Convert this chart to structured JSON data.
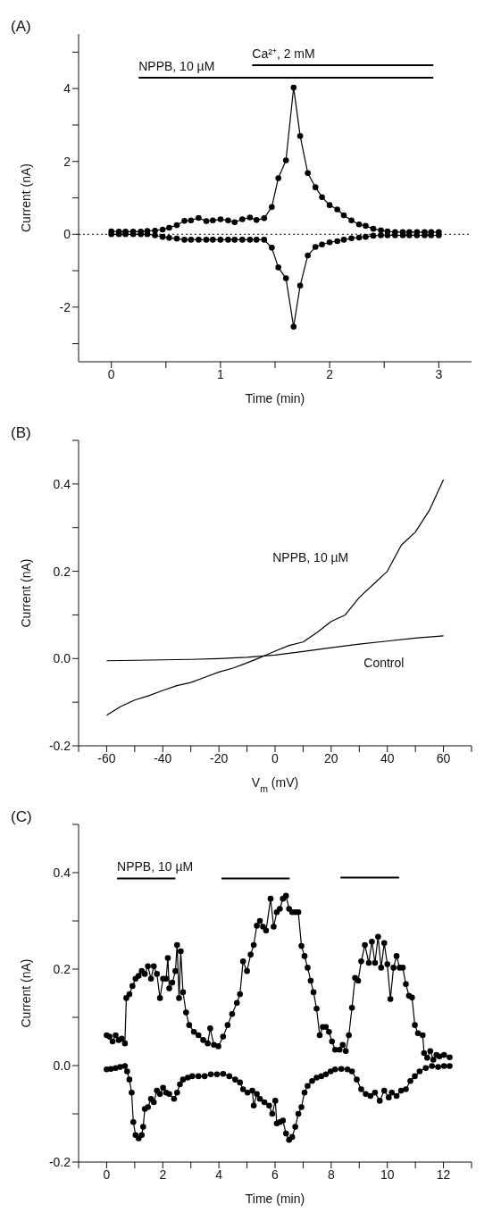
{
  "chart_data": [
    {
      "type": "line",
      "title": "(A)",
      "xlabel": "Time (min)",
      "ylabel": "Current (nA)",
      "marker": "circle",
      "line_style": "solid",
      "xlim": [
        -0.3,
        3.3
      ],
      "xticks": [
        0,
        {
          "value": 0.5,
          "label": null
        },
        1,
        {
          "value": 1.5,
          "label": null
        },
        2,
        {
          "value": 2.5,
          "label": null
        },
        3
      ],
      "ylim": [
        -3.5,
        5.5
      ],
      "yticks": [
        {
          "value": -3,
          "label": null
        },
        -2,
        {
          "value": -1,
          "label": null
        },
        0,
        {
          "value": 1,
          "label": null
        },
        2,
        {
          "value": 3,
          "label": null
        },
        4,
        {
          "value": 5,
          "label": null
        }
      ],
      "x": [
        0,
        0.07,
        0.13,
        0.2,
        0.27,
        0.33,
        0.4,
        0.47,
        0.53,
        0.6,
        0.67,
        0.73,
        0.8,
        0.87,
        0.93,
        1,
        1.07,
        1.13,
        1.2,
        1.27,
        1.33,
        1.4,
        1.47,
        1.53,
        1.6,
        1.67,
        1.73,
        1.8,
        1.87,
        1.93,
        2,
        2.07,
        2.13,
        2.2,
        2.27,
        2.33,
        2.4,
        2.47,
        2.53,
        2.6,
        2.67,
        2.73,
        2.8,
        2.87,
        2.93,
        3
      ],
      "series": [
        {
          "color": "#000000",
          "values": [
            0.08,
            0.07,
            0.07,
            0.07,
            0.07,
            0.09,
            0.1,
            0.13,
            0.18,
            0.25,
            0.37,
            0.38,
            0.45,
            0.36,
            0.38,
            0.41,
            0.38,
            0.33,
            0.41,
            0.46,
            0.39,
            0.44,
            0.75,
            1.54,
            2.03,
            4.03,
            2.7,
            1.68,
            1.29,
            1.02,
            0.8,
            0.68,
            0.52,
            0.38,
            0.27,
            0.23,
            0.15,
            0.11,
            0.08,
            0.06,
            0.06,
            0.06,
            0.06,
            0.06,
            0.06,
            0.06
          ]
        },
        {
          "color": "#000000",
          "values": [
            0,
            0,
            0,
            0,
            0,
            0,
            -0.03,
            -0.07,
            -0.1,
            -0.12,
            -0.15,
            -0.15,
            -0.15,
            -0.15,
            -0.15,
            -0.15,
            -0.15,
            -0.15,
            -0.15,
            -0.15,
            -0.15,
            -0.15,
            -0.37,
            -0.91,
            -1.21,
            -2.54,
            -1.41,
            -0.58,
            -0.35,
            -0.28,
            -0.22,
            -0.19,
            -0.15,
            -0.11,
            -0.09,
            -0.07,
            -0.04,
            -0.03,
            -0.03,
            -0.03,
            -0.03,
            -0.03,
            -0.03,
            -0.03,
            -0.03,
            -0.03
          ]
        },
        {
          "name": "NPPB, 10 µM",
          "color": "#000000",
          "marker": "none",
          "x": [
            0.25,
            2.95
          ],
          "values": [
            4.3,
            4.3
          ]
        },
        {
          "name": "Ca²⁺, 2 mM",
          "color": "#000000",
          "marker": "none",
          "x": [
            1.29,
            2.95
          ],
          "values": [
            4.64,
            4.64
          ]
        }
      ],
      "ref_lines": [
        {
          "axis": "y",
          "value": 0,
          "line_style": "dotted",
          "color": "#000000"
        }
      ]
    },
    {
      "type": "line",
      "title": "(B)",
      "xlabel": "V$_{m}$ (mV)",
      "ylabel": "Current (nA)",
      "marker": "none",
      "line_style": "solid",
      "xlim": [
        -70,
        70
      ],
      "xticks": [
        {
          "value": -70,
          "label": null
        },
        -60,
        {
          "value": -50,
          "label": null
        },
        -40,
        {
          "value": -30,
          "label": null
        },
        -20,
        {
          "value": -10,
          "label": null
        },
        0,
        {
          "value": 10,
          "label": null
        },
        20,
        {
          "value": 30,
          "label": null
        },
        40,
        {
          "value": 50,
          "label": null
        },
        60,
        {
          "value": 70,
          "label": null
        }
      ],
      "ylim": [
        -0.2,
        0.5
      ],
      "yticks": [
        -0.2,
        {
          "value": -0.1,
          "label": null
        },
        {
          "value": 0,
          "label": "0.0"
        },
        {
          "value": 0.1,
          "label": null
        },
        0.2,
        {
          "value": 0.3,
          "label": null
        },
        0.4,
        {
          "value": 0.5,
          "label": null
        }
      ],
      "series": [
        {
          "name": "NPPB, 10 µM",
          "color": "#000000",
          "x": [
            -60,
            -55,
            -50,
            -45,
            -40,
            -35,
            -30,
            -25,
            -20,
            -15,
            -10,
            -5,
            0,
            5,
            10,
            15,
            20,
            25,
            30,
            35,
            40,
            45,
            50,
            55,
            60
          ],
          "values": [
            -0.13,
            -0.11,
            -0.095,
            -0.085,
            -0.073,
            -0.062,
            -0.055,
            -0.043,
            -0.031,
            -0.022,
            -0.01,
            0.003,
            0.017,
            0.03,
            0.038,
            0.06,
            0.085,
            0.1,
            0.14,
            0.17,
            0.2,
            0.26,
            0.29,
            0.34,
            0.41
          ]
        },
        {
          "name": "Control",
          "color": "#000000",
          "x": [
            -60,
            -50,
            -40,
            -30,
            -20,
            -10,
            0,
            10,
            20,
            30,
            40,
            50,
            60
          ],
          "values": [
            -0.005,
            -0.004,
            -0.003,
            -0.002,
            0,
            0.003,
            0.008,
            0.016,
            0.025,
            0.033,
            0.04,
            0.047,
            0.052
          ]
        }
      ]
    },
    {
      "type": "line",
      "title": "(C)",
      "xlabel": "Time (min)",
      "ylabel": "Current (nA)",
      "marker": "circle",
      "line_style": "solid",
      "xlim": [
        -1,
        13
      ],
      "xticks": [
        {
          "value": -1,
          "label": null
        },
        0,
        {
          "value": 1,
          "label": null
        },
        2,
        {
          "value": 3,
          "label": null
        },
        4,
        {
          "value": 5,
          "label": null
        },
        6,
        {
          "value": 7,
          "label": null
        },
        8,
        {
          "value": 9,
          "label": null
        },
        10,
        {
          "value": 11,
          "label": null
        },
        12,
        {
          "value": 13,
          "label": null
        }
      ],
      "ylim": [
        -0.2,
        0.5
      ],
      "yticks": [
        -0.2,
        {
          "value": -0.1,
          "label": null
        },
        {
          "value": 0,
          "label": "0.0"
        },
        {
          "value": 0.1,
          "label": null
        },
        0.2,
        {
          "value": 0.3,
          "label": null
        },
        0.4,
        {
          "value": 0.5,
          "label": null
        }
      ],
      "series": [
        {
          "color": "#000000",
          "x": [
            0,
            0.1,
            0.21,
            0.32,
            0.43,
            0.54,
            0.65,
            0.7,
            0.81,
            0.92,
            1.03,
            1.14,
            1.25,
            1.36,
            1.47,
            1.58,
            1.68,
            1.79,
            1.9,
            2.01,
            2.12,
            2.18,
            2.23,
            2.34,
            2.45,
            2.51,
            2.58,
            2.64,
            2.72,
            2.83,
            2.94,
            3.11,
            3.27,
            3.44,
            3.6,
            3.69,
            3.82,
            3.98,
            4.15,
            4.31,
            4.47,
            4.64,
            4.75,
            4.86,
            5,
            5.13,
            5.24,
            5.35,
            5.46,
            5.57,
            5.68,
            5.84,
            5.95,
            6.06,
            6.17,
            6.28,
            6.39,
            6.5,
            6.61,
            6.72,
            6.83,
            6.94,
            7.05,
            7.16,
            7.27,
            7.37,
            7.48,
            7.59,
            7.7,
            7.81,
            7.92,
            8.03,
            8.14,
            8.3,
            8.41,
            8.52,
            8.63,
            8.74,
            8.85,
            8.96,
            9.07,
            9.2,
            9.34,
            9.45,
            9.56,
            9.67,
            9.78,
            9.89,
            10,
            10.11,
            10.22,
            10.33,
            10.44,
            10.55,
            10.66,
            10.77,
            10.88,
            10.98,
            11.09,
            11.26,
            11.31,
            11.42,
            11.53,
            11.64,
            11.75,
            11.86,
            12.02,
            12.22
          ],
          "values": [
            0.063,
            0.06,
            0.05,
            0.063,
            0.053,
            0.056,
            0.046,
            0.14,
            0.148,
            0.165,
            0.18,
            0.186,
            0.196,
            0.19,
            0.206,
            0.18,
            0.206,
            0.19,
            0.14,
            0.18,
            0.18,
            0.223,
            0.16,
            0.172,
            0.196,
            0.25,
            0.14,
            0.237,
            0.152,
            0.11,
            0.084,
            0.07,
            0.063,
            0.053,
            0.046,
            0.077,
            0.043,
            0.04,
            0.06,
            0.084,
            0.107,
            0.13,
            0.148,
            0.216,
            0.196,
            0.23,
            0.25,
            0.29,
            0.3,
            0.288,
            0.28,
            0.346,
            0.288,
            0.318,
            0.325,
            0.346,
            0.352,
            0.325,
            0.318,
            0.318,
            0.318,
            0.248,
            0.227,
            0.203,
            0.176,
            0.152,
            0.118,
            0.063,
            0.08,
            0.08,
            0.07,
            0.05,
            0.033,
            0.033,
            0.043,
            0.03,
            0.063,
            0.12,
            0.182,
            0.176,
            0.216,
            0.25,
            0.213,
            0.257,
            0.213,
            0.267,
            0.203,
            0.254,
            0.21,
            0.138,
            0.203,
            0.227,
            0.203,
            0.203,
            0.169,
            0.145,
            0.141,
            0.084,
            0.067,
            0.063,
            0.026,
            0.016,
            0.03,
            0.012,
            0.022,
            0.019,
            0.022,
            0.017
          ]
        },
        {
          "color": "#000000",
          "x": [
            0,
            0.15,
            0.32,
            0.48,
            0.65,
            0.73,
            0.81,
            0.89,
            0.95,
            1.03,
            1.14,
            1.25,
            1.3,
            1.36,
            1.47,
            1.58,
            1.68,
            1.79,
            1.9,
            2.01,
            2.12,
            2.23,
            2.4,
            2.51,
            2.61,
            2.72,
            2.89,
            3.05,
            3.27,
            3.49,
            3.71,
            3.93,
            4.15,
            4.37,
            4.58,
            4.75,
            4.86,
            5.02,
            5.19,
            5.24,
            5.35,
            5.46,
            5.62,
            5.79,
            5.9,
            6.01,
            6.06,
            6.17,
            6.28,
            6.39,
            6.5,
            6.61,
            6.72,
            6.83,
            6.94,
            7.05,
            7.16,
            7.32,
            7.48,
            7.65,
            7.81,
            7.98,
            8.14,
            8.36,
            8.58,
            8.74,
            8.91,
            9.07,
            9.23,
            9.4,
            9.56,
            9.73,
            9.89,
            10.05,
            10.16,
            10.33,
            10.49,
            10.66,
            10.82,
            10.98,
            11.15,
            11.37,
            11.59,
            11.81,
            12.02,
            12.22
          ],
          "values": [
            -0.008,
            -0.007,
            -0.005,
            -0.003,
            -0.001,
            -0.012,
            -0.029,
            -0.056,
            -0.117,
            -0.144,
            -0.151,
            -0.144,
            -0.127,
            -0.09,
            -0.086,
            -0.069,
            -0.076,
            -0.052,
            -0.059,
            -0.046,
            -0.056,
            -0.059,
            -0.069,
            -0.056,
            -0.039,
            -0.029,
            -0.025,
            -0.022,
            -0.022,
            -0.022,
            -0.018,
            -0.018,
            -0.017,
            -0.022,
            -0.029,
            -0.035,
            -0.049,
            -0.056,
            -0.052,
            -0.083,
            -0.059,
            -0.069,
            -0.076,
            -0.083,
            -0.1,
            -0.073,
            -0.12,
            -0.117,
            -0.114,
            -0.141,
            -0.154,
            -0.148,
            -0.127,
            -0.1,
            -0.086,
            -0.056,
            -0.042,
            -0.032,
            -0.025,
            -0.022,
            -0.018,
            -0.012,
            -0.008,
            -0.007,
            -0.008,
            -0.012,
            -0.029,
            -0.049,
            -0.059,
            -0.063,
            -0.056,
            -0.073,
            -0.052,
            -0.066,
            -0.056,
            -0.063,
            -0.052,
            -0.049,
            -0.032,
            -0.022,
            -0.012,
            -0.005,
            -0.001,
            -0.003,
            -0.001,
            -0.001
          ]
        },
        {
          "name": "NPPB, 10 µM",
          "color": "#000000",
          "marker": "none",
          "x": [
            0.37,
            2.45
          ],
          "values": [
            0.388,
            0.388
          ]
        },
        {
          "color": "#000000",
          "marker": "none",
          "x": [
            4.09,
            6.52
          ],
          "values": [
            0.388,
            0.388
          ]
        },
        {
          "color": "#000000",
          "marker": "none",
          "x": [
            8.33,
            10.42
          ],
          "values": [
            0.39,
            0.39
          ]
        }
      ]
    }
  ]
}
